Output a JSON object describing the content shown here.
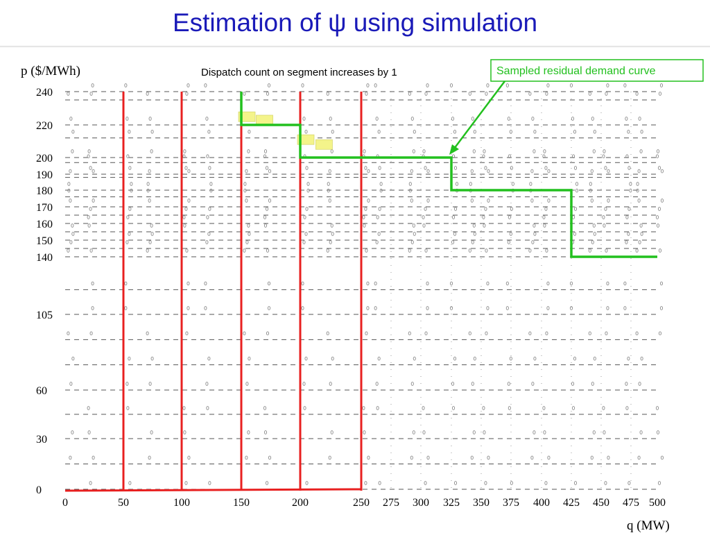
{
  "title": "Estimation of ψ using simulation",
  "y_axis_label": "p ($/MWh)",
  "x_axis_label": "q (MW)",
  "annotation": "Dispatch count on segment increases by 1",
  "callout": "Sampled residual demand curve",
  "colors": {
    "title": "#1a1ab8",
    "step_curve": "#22c01e",
    "red_lines": "#e82020",
    "callout_border": "#22c01e",
    "highlight": "#f4f48a"
  },
  "chart_data": {
    "type": "step-diagram",
    "x_ticks": [
      0,
      50,
      100,
      150,
      200,
      250,
      275,
      300,
      325,
      350,
      375,
      400,
      425,
      450,
      475,
      500
    ],
    "y_ticks": [
      0,
      30,
      60,
      105,
      140,
      150,
      160,
      170,
      180,
      190,
      200,
      220,
      240
    ],
    "xlim": [
      0,
      500
    ],
    "ylim": [
      0,
      240
    ],
    "red_vertical_lines_at_q": [
      50,
      100,
      150,
      200,
      250
    ],
    "sampled_residual_demand_curve": {
      "q": [
        150,
        150,
        200,
        200,
        325,
        325,
        425,
        425,
        500
      ],
      "p": [
        240,
        220,
        220,
        200,
        200,
        180,
        180,
        140,
        140
      ]
    }
  }
}
